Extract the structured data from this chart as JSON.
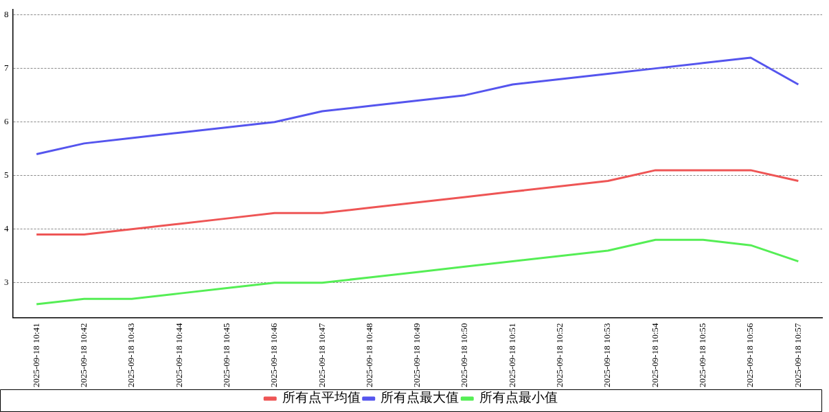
{
  "chart_data": {
    "type": "line",
    "categories": [
      "2025-09-18 10:41",
      "2025-09-18 10:42",
      "2025-09-18 10:43",
      "2025-09-18 10:44",
      "2025-09-18 10:45",
      "2025-09-18 10:46",
      "2025-09-18 10:47",
      "2025-09-18 10:48",
      "2025-09-18 10:49",
      "2025-09-18 10:50",
      "2025-09-18 10:51",
      "2025-09-18 10:52",
      "2025-09-18 10:53",
      "2025-09-18 10:54",
      "2025-09-18 10:55",
      "2025-09-18 10:56",
      "2025-09-18 10:57"
    ],
    "series": [
      {
        "name": "所有点平均值",
        "color": "#ee5555",
        "values": [
          3.9,
          3.9,
          4.0,
          4.1,
          4.2,
          4.3,
          4.3,
          4.4,
          4.5,
          4.6,
          4.7,
          4.8,
          4.9,
          5.1,
          5.1,
          5.1,
          4.9
        ]
      },
      {
        "name": "所有点最大值",
        "color": "#5555ee",
        "values": [
          5.4,
          5.6,
          5.7,
          5.8,
          5.9,
          6.0,
          6.2,
          6.3,
          6.4,
          6.5,
          6.7,
          6.8,
          6.9,
          7.0,
          7.1,
          7.2,
          6.7
        ]
      },
      {
        "name": "所有点最小值",
        "color": "#55ee55",
        "values": [
          2.6,
          2.7,
          2.7,
          2.8,
          2.9,
          3.0,
          3.0,
          3.1,
          3.2,
          3.3,
          3.4,
          3.5,
          3.6,
          3.8,
          3.8,
          3.7,
          3.4
        ]
      }
    ],
    "ylim": [
      2.35,
      8.1
    ],
    "yticks": [
      3,
      4,
      5,
      6,
      7,
      8
    ],
    "grid": "y",
    "legend": "bottom",
    "marker": "none",
    "line_style": "solid"
  }
}
